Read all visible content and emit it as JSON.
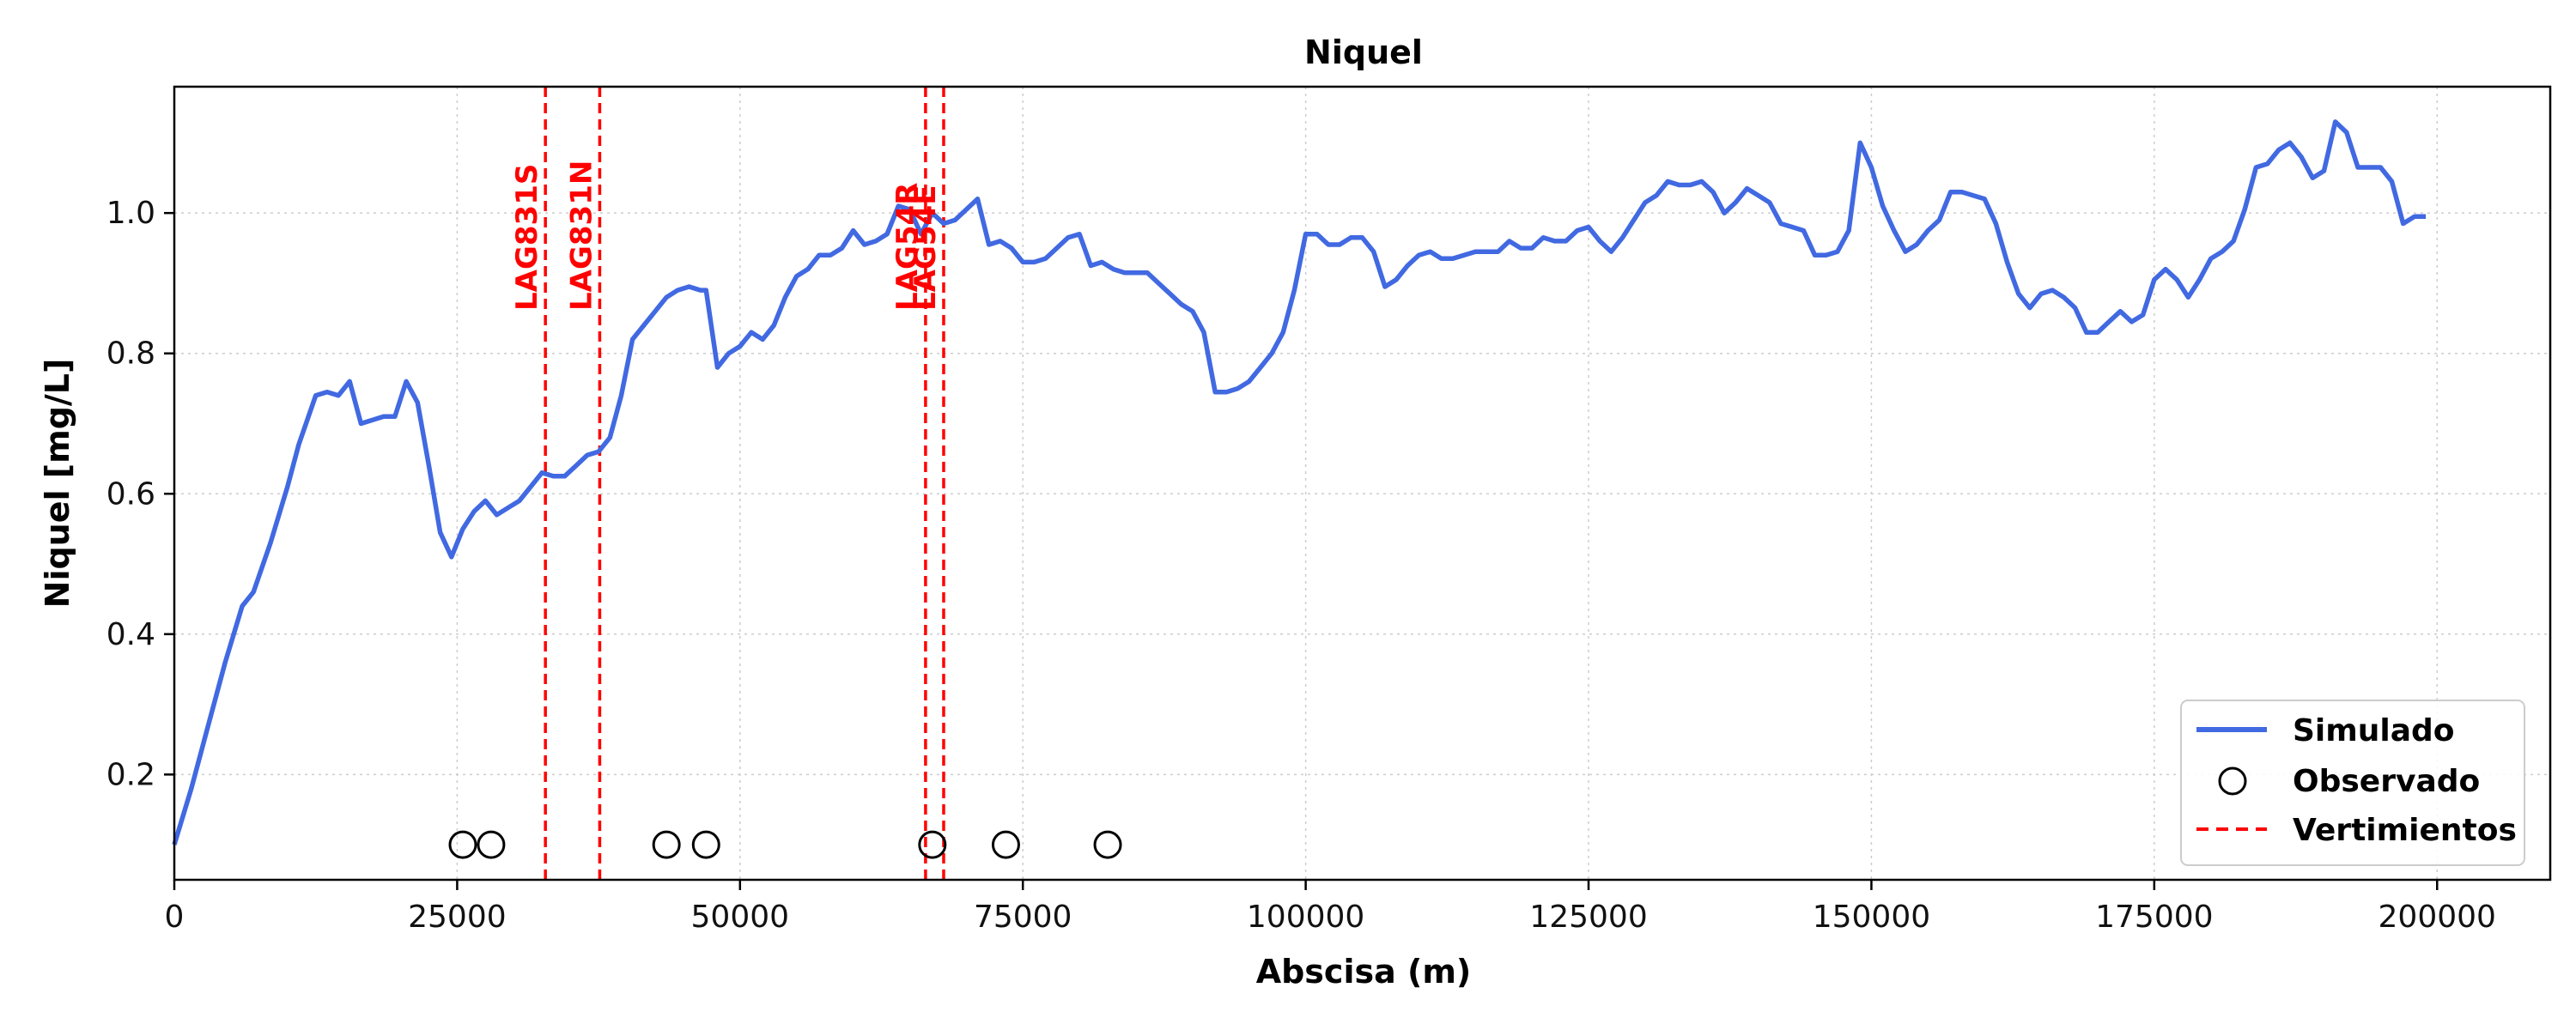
{
  "chart_data": {
    "type": "line",
    "title": "Niquel",
    "xlabel": "Abscisa (m)",
    "ylabel": "Niquel [mg/L]",
    "xlim": [
      0,
      210000
    ],
    "ylim": [
      0.05,
      1.18
    ],
    "x_ticks": [
      0,
      25000,
      50000,
      75000,
      100000,
      125000,
      150000,
      175000,
      200000
    ],
    "y_ticks": [
      0.2,
      0.4,
      0.6,
      0.8,
      1.0
    ],
    "x_tick_labels": [
      "0",
      "25000",
      "50000",
      "75000",
      "100000",
      "125000",
      "150000",
      "175000",
      "200000"
    ],
    "y_tick_labels": [
      "0.2",
      "0.4",
      "0.6",
      "0.8",
      "1.0"
    ],
    "grid": true,
    "legend_position": "bottom-right",
    "series": [
      {
        "name": "Simulado",
        "kind": "line",
        "color": "#4169e1",
        "x": [
          0,
          1500,
          3000,
          4500,
          6000,
          7000,
          8500,
          10000,
          11000,
          12500,
          13500,
          14500,
          15500,
          16500,
          17500,
          18500,
          19500,
          20500,
          21500,
          22500,
          23500,
          24500,
          25500,
          26500,
          27500,
          28500,
          29500,
          30500,
          31500,
          32500,
          33500,
          34500,
          35500,
          36500,
          37500,
          38500,
          39500,
          40500,
          41500,
          42500,
          43500,
          44500,
          45500,
          46500,
          47000,
          48000,
          49000,
          50000,
          51000,
          52000,
          53000,
          54000,
          55000,
          56000,
          57000,
          58000,
          59000,
          60000,
          61000,
          62000,
          63000,
          64000,
          65000,
          66000,
          67000,
          68000,
          69000,
          70000,
          71000,
          72000,
          73000,
          74000,
          75000,
          76000,
          77000,
          78000,
          79000,
          80000,
          81000,
          82000,
          83000,
          84000,
          85000,
          86000,
          87000,
          88000,
          89000,
          90000,
          91000,
          92000,
          93000,
          94000,
          95000,
          96000,
          97000,
          98000,
          99000,
          100000,
          101000,
          102000,
          103000,
          104000,
          105000,
          106000,
          107000,
          108000,
          109000,
          110000,
          111000,
          112000,
          113000,
          114000,
          115000,
          116000,
          117000,
          118000,
          119000,
          120000,
          121000,
          122000,
          123000,
          124000,
          125000,
          126000,
          127000,
          128000,
          129000,
          130000,
          131000,
          132000,
          133000,
          134000,
          135000,
          136000,
          137000,
          138000,
          139000,
          140000,
          141000,
          142000,
          143000,
          144000,
          145000,
          146000,
          147000,
          148000,
          149000,
          150000,
          151000,
          152000,
          153000,
          154000,
          155000,
          156000,
          157000,
          158000,
          159000,
          160000,
          161000,
          162000,
          163000,
          164000,
          165000,
          166000,
          167000,
          168000,
          169000,
          170000,
          171000,
          172000,
          173000,
          174000,
          175000,
          176000,
          177000,
          178000,
          179000,
          180000,
          181000,
          182000,
          183000,
          184000,
          185000,
          186000,
          187000,
          188000,
          189000,
          190000,
          191000,
          192000,
          193000,
          194000,
          195000,
          196000,
          197000,
          198000,
          199000
        ],
        "y": [
          0.1,
          0.18,
          0.27,
          0.36,
          0.44,
          0.46,
          0.53,
          0.61,
          0.67,
          0.74,
          0.745,
          0.74,
          0.76,
          0.7,
          0.705,
          0.71,
          0.71,
          0.76,
          0.73,
          0.64,
          0.545,
          0.51,
          0.55,
          0.575,
          0.59,
          0.57,
          0.58,
          0.59,
          0.61,
          0.63,
          0.625,
          0.625,
          0.64,
          0.655,
          0.66,
          0.68,
          0.74,
          0.82,
          0.84,
          0.86,
          0.88,
          0.89,
          0.895,
          0.89,
          0.89,
          0.78,
          0.8,
          0.81,
          0.83,
          0.82,
          0.84,
          0.88,
          0.91,
          0.92,
          0.94,
          0.94,
          0.95,
          0.975,
          0.955,
          0.96,
          0.97,
          1.01,
          1.005,
          0.97,
          1.0,
          0.985,
          0.99,
          1.005,
          1.02,
          0.955,
          0.96,
          0.95,
          0.93,
          0.93,
          0.935,
          0.95,
          0.965,
          0.97,
          0.925,
          0.93,
          0.92,
          0.915,
          0.915,
          0.915,
          0.9,
          0.885,
          0.87,
          0.86,
          0.83,
          0.745,
          0.745,
          0.75,
          0.76,
          0.78,
          0.8,
          0.83,
          0.89,
          0.97,
          0.97,
          0.955,
          0.955,
          0.965,
          0.965,
          0.945,
          0.895,
          0.905,
          0.925,
          0.94,
          0.945,
          0.935,
          0.935,
          0.94,
          0.945,
          0.945,
          0.945,
          0.96,
          0.95,
          0.95,
          0.965,
          0.96,
          0.96,
          0.975,
          0.98,
          0.96,
          0.945,
          0.965,
          0.99,
          1.015,
          1.025,
          1.045,
          1.04,
          1.04,
          1.045,
          1.03,
          1.0,
          1.015,
          1.035,
          1.025,
          1.015,
          0.985,
          0.98,
          0.975,
          0.94,
          0.94,
          0.945,
          0.975,
          1.1,
          1.065,
          1.01,
          0.975,
          0.945,
          0.955,
          0.975,
          0.99,
          1.03,
          1.03,
          1.025,
          1.02,
          0.985,
          0.93,
          0.885,
          0.865,
          0.885,
          0.89,
          0.88,
          0.865,
          0.83,
          0.83,
          0.845,
          0.86,
          0.845,
          0.855,
          0.905,
          0.92,
          0.905,
          0.88,
          0.905,
          0.935,
          0.945,
          0.96,
          1.005,
          1.065,
          1.07,
          1.09,
          1.1,
          1.08,
          1.05,
          1.06,
          1.13,
          1.115,
          1.065,
          1.065,
          1.065,
          1.045,
          0.985,
          0.995,
          0.995
        ]
      },
      {
        "name": "Observado",
        "kind": "scatter",
        "color": "#000000",
        "x": [
          25500,
          28000,
          43500,
          47000,
          67000,
          73500,
          82500
        ],
        "y": [
          0.1,
          0.1,
          0.1,
          0.1,
          0.1,
          0.1,
          0.1
        ]
      },
      {
        "name": "Vertimientos",
        "kind": "vlines",
        "color": "#ff0000",
        "x": [
          32800,
          37600,
          66400,
          68000
        ],
        "labels": [
          "LAG831S",
          "LAG831N",
          "LAG54R",
          "LAG54E"
        ]
      }
    ]
  }
}
